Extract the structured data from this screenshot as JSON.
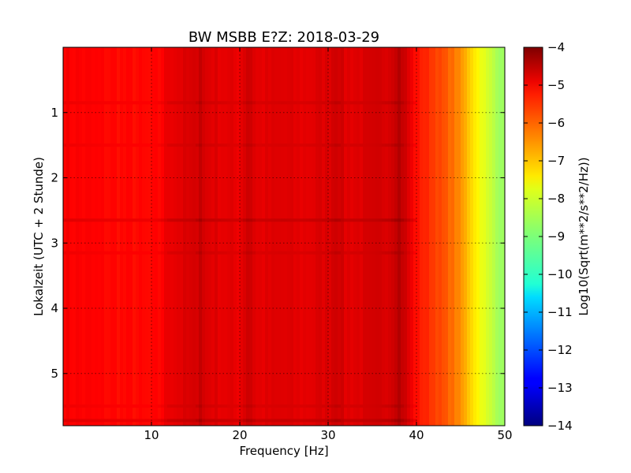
{
  "chart_data": {
    "type": "heatmap",
    "title": "BW MSBB E?Z: 2018-03-29",
    "xlabel": "Frequency [Hz]",
    "ylabel": "Lokalzeit (UTC + 2 Stunde)",
    "xlim": [
      0,
      50
    ],
    "ylim": [
      5.8,
      0
    ],
    "xticks": [
      10,
      20,
      30,
      40,
      50
    ],
    "yticks": [
      1,
      2,
      3,
      4,
      5
    ],
    "grid": true,
    "colorbar": {
      "label": "Log10(Sqrt(m**2/s**2/Hz))",
      "range": [
        -14,
        -4
      ],
      "ticks": [
        -4,
        -5,
        -6,
        -7,
        -8,
        -9,
        -10,
        -11,
        -12,
        -13,
        -14
      ],
      "colormap": "jet"
    },
    "frequency_profile": {
      "frequencies": [
        0,
        5,
        10,
        11,
        12,
        15,
        15.5,
        16,
        20,
        21,
        22,
        25,
        27,
        30,
        31,
        32,
        35,
        37,
        38,
        39,
        40,
        42,
        44,
        45,
        46,
        47,
        48,
        50
      ],
      "values": [
        -5.2,
        -5.3,
        -5.35,
        -5.3,
        -5.0,
        -4.9,
        -4.6,
        -4.9,
        -5.05,
        -4.7,
        -5.0,
        -4.95,
        -5.0,
        -4.9,
        -4.7,
        -4.95,
        -4.9,
        -4.8,
        -4.5,
        -4.9,
        -5.4,
        -5.8,
        -6.3,
        -6.7,
        -7.2,
        -7.7,
        -8.2,
        -8.8
      ]
    },
    "time_features": [
      {
        "time": 2.65,
        "delta": 0.25
      },
      {
        "time": 0.85,
        "delta": 0.12
      },
      {
        "time": 1.5,
        "delta": 0.1
      },
      {
        "time": 3.15,
        "delta": 0.1
      },
      {
        "time": 5.5,
        "delta": 0.1
      },
      {
        "time": 5.72,
        "delta": 0.25
      }
    ]
  }
}
